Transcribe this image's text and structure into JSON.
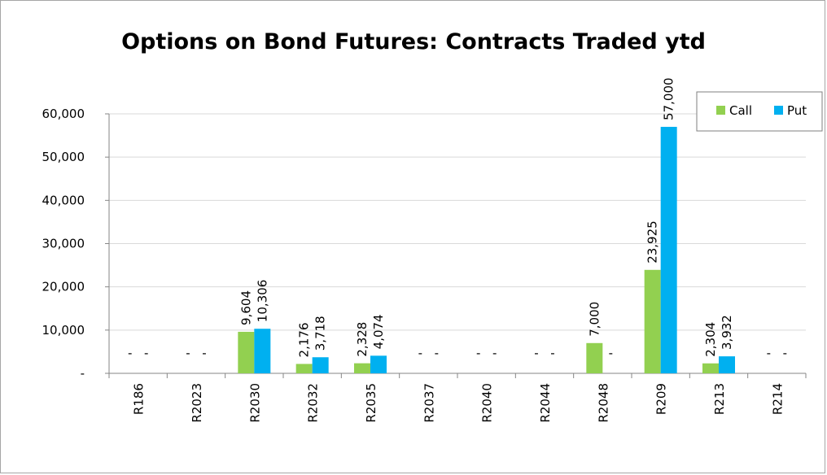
{
  "chart_data": {
    "type": "bar",
    "title": "Options on Bond Futures: Contracts Traded ytd",
    "categories": [
      "R186",
      "R2023",
      "R2030",
      "R2032",
      "R2035",
      "R2037",
      "R2040",
      "R2044",
      "R2048",
      "R209",
      "R213",
      "R214"
    ],
    "series": [
      {
        "name": "Call",
        "color": "#92d050",
        "values": [
          0,
          0,
          9604,
          2176,
          2328,
          0,
          0,
          0,
          7000,
          23925,
          2304,
          0
        ],
        "labels": [
          "-",
          "-",
          "9,604",
          "2,176",
          "2,328",
          "-",
          "-",
          "-",
          "7,000",
          "23,925",
          "2,304",
          "-"
        ]
      },
      {
        "name": "Put",
        "color": "#00b0f0",
        "values": [
          0,
          0,
          10306,
          3718,
          4074,
          0,
          0,
          0,
          0,
          57000,
          3932,
          0
        ],
        "labels": [
          "-",
          "-",
          "10,306",
          "3,718",
          "4,074",
          "-",
          "-",
          "-",
          "-",
          "57,000",
          "3,932",
          "-"
        ]
      }
    ],
    "ylim": [
      0,
      60000
    ],
    "yticks": [
      0,
      10000,
      20000,
      30000,
      40000,
      50000,
      60000
    ],
    "ytick_labels": [
      "-",
      "10,000",
      "20,000",
      "30,000",
      "40,000",
      "50,000",
      "60,000"
    ],
    "grid": true,
    "legend_position": "top-right",
    "xlabel": "",
    "ylabel": ""
  }
}
